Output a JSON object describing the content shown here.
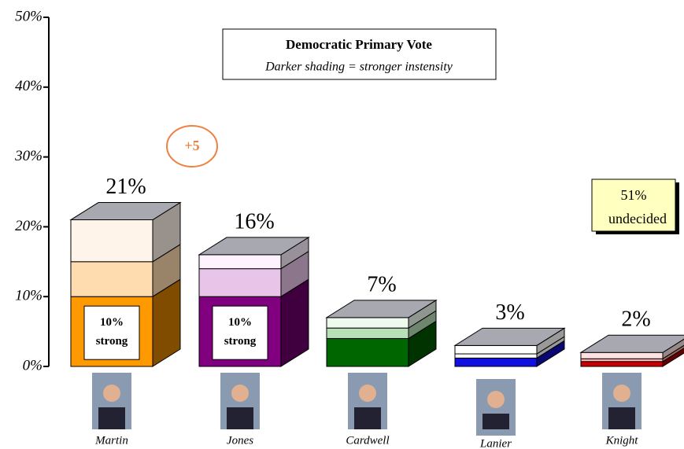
{
  "chart_data": {
    "type": "bar3d_stacked",
    "title": "Democratic Primary Vote",
    "subtitle": "Darker shading = stronger instensity",
    "categories": [
      "Martin",
      "Jones",
      "Cardwell",
      "Lanier",
      "Knight"
    ],
    "series": [
      {
        "values": [
          10,
          10,
          4,
          1.2,
          0.7
        ],
        "colors": [
          "#ff9900",
          "#800080",
          "#006600",
          "#1010e0",
          "#cc0000"
        ],
        "value_labels": [
          "10% strong",
          "10% strong",
          null,
          null,
          null
        ]
      },
      {
        "values": [
          5,
          4,
          1.5,
          0.6,
          0.4
        ],
        "colors": [
          "#ffdcb0",
          "#e8c4e8",
          "#b8e0b8",
          "#ffffff",
          "#ffb0b0"
        ]
      },
      {
        "values": [
          6,
          2,
          1.5,
          1.2,
          0.9
        ],
        "colors": [
          "#fff4ea",
          "#fff2ff",
          "#eefaee",
          "#ffffff",
          "#ffe2e2"
        ]
      }
    ],
    "totals": {
      "values": [
        21,
        16,
        7,
        3,
        2
      ],
      "value_labels": [
        "21%",
        "16%",
        "7%",
        "3%",
        "2%"
      ]
    },
    "ylim": [
      0,
      50
    ],
    "yticks": [
      {
        "value": 0,
        "label": "0%"
      },
      {
        "value": 10,
        "label": "10%"
      },
      {
        "value": 20,
        "label": "20%"
      },
      {
        "value": 30,
        "label": "30%"
      },
      {
        "value": 40,
        "label": "40%"
      },
      {
        "value": 50,
        "label": "50%"
      }
    ],
    "annotations": [
      "+5",
      "51%",
      "undecided"
    ]
  }
}
